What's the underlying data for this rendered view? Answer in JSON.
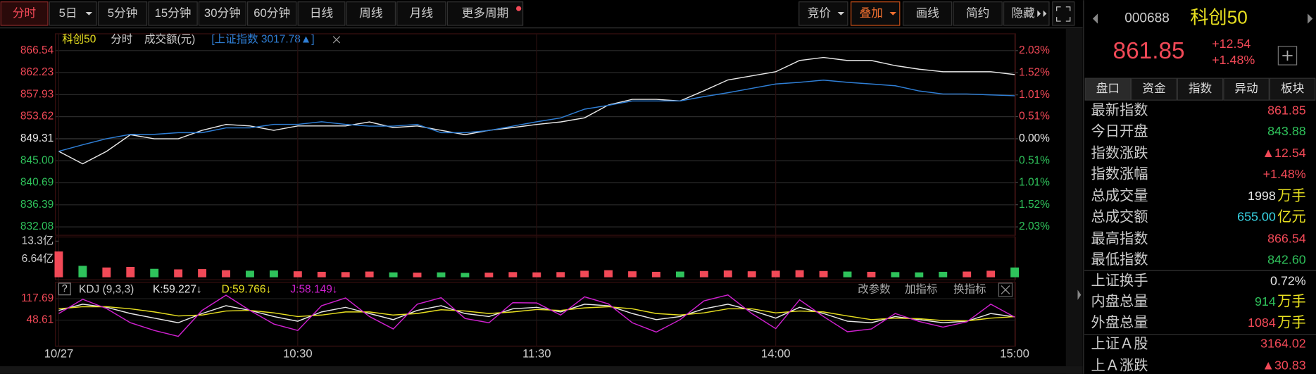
{
  "toolbar": {
    "periods": [
      "分时",
      "5日",
      "5分钟",
      "15分钟",
      "30分钟",
      "60分钟",
      "日线",
      "周线",
      "月线",
      "更多周期"
    ],
    "tools": [
      "竞价",
      "叠加",
      "画线",
      "简约",
      "隐藏"
    ]
  },
  "chart_data": [
    {
      "type": "line",
      "legend_texts": [
        "科创50",
        "分时",
        "成交额(元)",
        "[上证指数 3017.78▲]"
      ],
      "x": [
        0,
        6,
        12,
        18,
        24,
        30,
        36,
        42,
        48,
        54,
        60,
        66,
        72,
        78,
        84,
        90,
        96,
        102,
        108,
        114,
        120,
        126,
        132,
        138,
        144,
        150,
        156,
        162,
        168,
        174,
        180,
        186,
        192,
        198,
        204,
        210,
        216,
        222,
        228,
        234,
        240
      ],
      "xlim": [
        0,
        240
      ],
      "xticks": [
        {
          "value": 0,
          "label": "10/27"
        },
        {
          "value": 60,
          "label": "10:30"
        },
        {
          "value": 120,
          "label": "11:30"
        },
        {
          "value": 180,
          "label": "14:00"
        },
        {
          "value": 240,
          "label": "15:00"
        }
      ],
      "ylim": [
        832.08,
        866.54
      ],
      "yticks": [
        866.54,
        862.23,
        857.93,
        853.62,
        849.31,
        {
          "value": 845,
          "label": "845.00"
        },
        840.69,
        836.39,
        832.08
      ],
      "baseline": 849.31,
      "y2lim": [
        -2.03,
        2.03
      ],
      "y2ticks": [
        {
          "value": 2.03,
          "label": "2.03%"
        },
        {
          "value": 1.52,
          "label": "1.52%"
        },
        {
          "value": 1.01,
          "label": "1.01%"
        },
        {
          "value": 0.51,
          "label": "0.51%"
        },
        {
          "value": 0,
          "label": "0.00%"
        },
        {
          "value": -0.51,
          "label": "0.51%"
        },
        {
          "value": -1.01,
          "label": "1.01%"
        },
        {
          "value": -1.52,
          "label": "1.52%"
        },
        {
          "value": -2.03,
          "label": "2.03%"
        }
      ],
      "series": [
        {
          "name": "科创50",
          "color": "#e8e8e8",
          "values": [
            846.85,
            844.4,
            846.85,
            850.1,
            849.3,
            849.3,
            850.95,
            852.1,
            851.8,
            850.95,
            851.8,
            851.8,
            851.8,
            852.6,
            851.5,
            851.8,
            850.95,
            850.1,
            850.95,
            851.5,
            852.1,
            852.6,
            853.4,
            855.9,
            857.0,
            857.0,
            856.7,
            858.7,
            860.8,
            861.6,
            862.4,
            864.6,
            865.2,
            864.6,
            864.6,
            863.6,
            862.9,
            862.4,
            862.4,
            862.4,
            861.85
          ]
        },
        {
          "name": "上证指数",
          "color": "#2f7fd6",
          "axis": "y2",
          "values": [
            -0.29,
            -0.14,
            0,
            0.1,
            0.1,
            0.14,
            0.14,
            0.25,
            0.25,
            0.33,
            0.33,
            0.39,
            0.33,
            0.29,
            0.29,
            0.33,
            0.14,
            0.14,
            0.19,
            0.29,
            0.39,
            0.48,
            0.68,
            0.77,
            0.87,
            0.87,
            0.87,
            0.97,
            1.06,
            1.16,
            1.26,
            1.3,
            1.35,
            1.3,
            1.26,
            1.22,
            1.1,
            1.03,
            1.03,
            1.01,
            0.99
          ]
        }
      ],
      "grid": true
    },
    {
      "type": "bar",
      "ylim": [
        0,
        13.3
      ],
      "yticks": [
        {
          "value": 13.3,
          "label": "13.3亿"
        },
        {
          "value": 6.64,
          "label": "6.64亿"
        }
      ],
      "up_color": "#f24957",
      "down_color": "#2fc25b",
      "values": [
        9.5,
        4.2,
        3.6,
        3.8,
        3.1,
        2.9,
        3.0,
        2.6,
        2.4,
        2.5,
        2.2,
        2.0,
        1.9,
        2.1,
        1.8,
        1.7,
        1.8,
        1.6,
        1.7,
        1.9,
        1.8,
        1.9,
        2.4,
        2.6,
        2.2,
        2.0,
        2.1,
        2.3,
        2.5,
        2.2,
        2.4,
        2.6,
        2.3,
        2.1,
        2.0,
        1.9,
        1.8,
        2.0,
        2.1,
        2.4,
        3.6
      ]
    },
    {
      "type": "line",
      "name": "KDJ (9,3,3)",
      "legend_labels": [
        "K:59.227↓",
        "D:59.766↓",
        "J:58.149↓"
      ],
      "actions": [
        "改参数",
        "加指标",
        "换指标"
      ],
      "ylim": [
        -30,
        160
      ],
      "yticks": [
        117.69,
        48.61
      ],
      "series": [
        {
          "name": "K",
          "color": "#e8e8e8",
          "values": [
            80,
            100,
            90,
            70,
            55,
            40,
            70,
            95,
            80,
            60,
            45,
            75,
            90,
            70,
            50,
            80,
            95,
            70,
            60,
            85,
            90,
            75,
            100,
            95,
            70,
            50,
            60,
            85,
            100,
            80,
            55,
            90,
            70,
            45,
            40,
            60,
            50,
            40,
            45,
            70,
            59.227
          ]
        },
        {
          "name": "D",
          "color": "#e8e020",
          "values": [
            85,
            92,
            92,
            85,
            75,
            62,
            65,
            78,
            80,
            72,
            60,
            65,
            75,
            75,
            65,
            70,
            82,
            78,
            70,
            75,
            83,
            80,
            88,
            92,
            85,
            70,
            65,
            72,
            85,
            85,
            72,
            78,
            75,
            62,
            50,
            55,
            53,
            47,
            46,
            55,
            59.766
          ]
        },
        {
          "name": "J",
          "color": "#d020d0",
          "values": [
            70,
            116,
            86,
            40,
            15,
            -4,
            80,
            129,
            80,
            36,
            15,
            95,
            120,
            60,
            20,
            100,
            121,
            54,
            40,
            105,
            104,
            65,
            124,
            101,
            40,
            10,
            50,
            111,
            130,
            70,
            21,
            114,
            60,
            11,
            20,
            70,
            44,
            26,
            43,
            100,
            58.149
          ]
        }
      ]
    }
  ],
  "quote": {
    "code": "000688",
    "name": "科创50",
    "price": "861.85",
    "change": "+12.54",
    "change_pct": "+1.48%",
    "tabs": [
      "盘口",
      "资金",
      "指数",
      "异动",
      "板块"
    ],
    "rows": [
      {
        "label": "最新指数",
        "value": "861.85",
        "color": "#f24957"
      },
      {
        "label": "今日开盘",
        "value": "843.88",
        "color": "#2fc25b"
      },
      {
        "label": "指数涨跌",
        "value": "▲12.54",
        "color": "#f24957"
      },
      {
        "label": "指数涨幅",
        "value": "+1.48%",
        "color": "#f24957"
      },
      {
        "label": "总成交量",
        "value": "1998",
        "unit": "万手",
        "color": "#e8e8e8"
      },
      {
        "label": "总成交额",
        "value": "655.00",
        "unit": "亿元",
        "color": "#3ad8e8"
      },
      {
        "label": "最高指数",
        "value": "866.54",
        "color": "#f24957"
      },
      {
        "label": "最低指数",
        "value": "842.60",
        "color": "#2fc25b"
      },
      {
        "label": "上证换手",
        "value": "0.72%",
        "color": "#e8e8e8"
      },
      {
        "label": "内盘总量",
        "value": "914",
        "unit": "万手",
        "color": "#2fc25b"
      },
      {
        "label": "外盘总量",
        "value": "1084",
        "unit": "万手",
        "color": "#f24957"
      },
      {
        "label": "上证Ａ股",
        "value": "3164.02",
        "color": "#f24957"
      },
      {
        "label": "上Ａ涨跌",
        "value": "▲30.83",
        "color": "#f24957"
      }
    ]
  }
}
